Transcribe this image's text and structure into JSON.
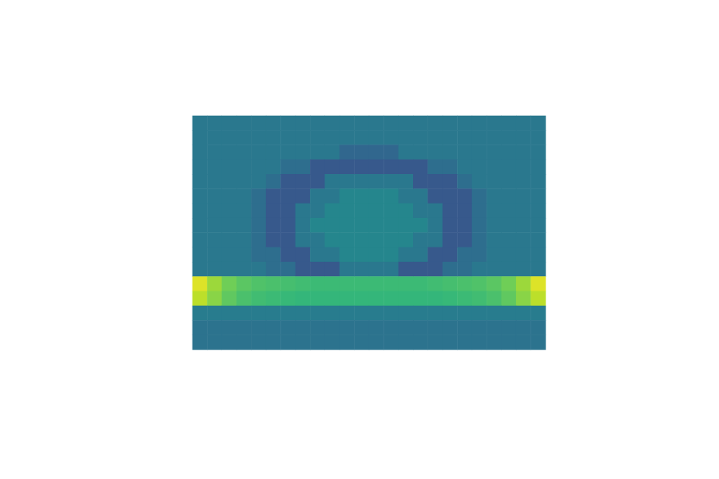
{
  "chart_data": {
    "type": "heatmap",
    "x": [
      null,
      null,
      null,
      null,
      null,
      null,
      null,
      null,
      null,
      null,
      null,
      null,
      null,
      null,
      null,
      null,
      null,
      null,
      null,
      null,
      null,
      null,
      null,
      null
    ],
    "y": [
      null,
      null,
      null,
      null,
      null,
      null,
      null,
      null,
      null,
      null,
      null,
      null,
      null,
      null,
      null,
      null
    ],
    "cells": [
      [
        0.4,
        0.4,
        0.4,
        0.4,
        0.4,
        0.4,
        0.4,
        0.4,
        0.4,
        0.4,
        0.4,
        0.4,
        0.4,
        0.4,
        0.4,
        0.4,
        0.4,
        0.4,
        0.4,
        0.4,
        0.4,
        0.4,
        0.4,
        0.4
      ],
      [
        0.4,
        0.4,
        0.4,
        0.4,
        0.4,
        0.4,
        0.4,
        0.4,
        0.4,
        0.4,
        0.4,
        0.4,
        0.4,
        0.4,
        0.4,
        0.4,
        0.4,
        0.4,
        0.4,
        0.4,
        0.4,
        0.4,
        0.4,
        0.4
      ],
      [
        0.4,
        0.4,
        0.4,
        0.4,
        0.4,
        0.4,
        0.4,
        0.4,
        0.4,
        0.4,
        0.33,
        0.33,
        0.33,
        0.33,
        0.4,
        0.4,
        0.4,
        0.4,
        0.4,
        0.4,
        0.4,
        0.4,
        0.4,
        0.4
      ],
      [
        0.4,
        0.4,
        0.4,
        0.4,
        0.4,
        0.4,
        0.36,
        0.36,
        0.28,
        0.28,
        0.28,
        0.28,
        0.28,
        0.28,
        0.28,
        0.28,
        0.36,
        0.36,
        0.4,
        0.4,
        0.4,
        0.4,
        0.4,
        0.4
      ],
      [
        0.4,
        0.4,
        0.4,
        0.4,
        0.4,
        0.36,
        0.28,
        0.28,
        0.28,
        0.4,
        0.4,
        0.4,
        0.4,
        0.4,
        0.4,
        0.28,
        0.28,
        0.28,
        0.36,
        0.4,
        0.4,
        0.4,
        0.4,
        0.4
      ],
      [
        0.4,
        0.4,
        0.4,
        0.4,
        0.36,
        0.28,
        0.28,
        0.28,
        0.4,
        0.4,
        0.46,
        0.46,
        0.46,
        0.46,
        0.4,
        0.4,
        0.28,
        0.28,
        0.28,
        0.36,
        0.4,
        0.4,
        0.4,
        0.4
      ],
      [
        0.4,
        0.4,
        0.4,
        0.4,
        0.36,
        0.28,
        0.28,
        0.4,
        0.4,
        0.46,
        0.46,
        0.46,
        0.46,
        0.46,
        0.46,
        0.4,
        0.4,
        0.28,
        0.28,
        0.36,
        0.4,
        0.4,
        0.4,
        0.4
      ],
      [
        0.4,
        0.4,
        0.4,
        0.4,
        0.36,
        0.28,
        0.28,
        0.4,
        0.46,
        0.46,
        0.46,
        0.46,
        0.46,
        0.46,
        0.46,
        0.46,
        0.4,
        0.28,
        0.28,
        0.36,
        0.4,
        0.4,
        0.4,
        0.4
      ],
      [
        0.4,
        0.4,
        0.4,
        0.4,
        0.36,
        0.28,
        0.28,
        0.4,
        0.4,
        0.46,
        0.46,
        0.46,
        0.46,
        0.46,
        0.46,
        0.4,
        0.4,
        0.28,
        0.28,
        0.36,
        0.4,
        0.4,
        0.4,
        0.4
      ],
      [
        0.4,
        0.4,
        0.4,
        0.4,
        0.36,
        0.36,
        0.28,
        0.28,
        0.4,
        0.4,
        0.46,
        0.46,
        0.46,
        0.46,
        0.4,
        0.4,
        0.28,
        0.28,
        0.36,
        0.36,
        0.4,
        0.4,
        0.4,
        0.4
      ],
      [
        0.4,
        0.4,
        0.4,
        0.4,
        0.4,
        0.36,
        0.36,
        0.28,
        0.28,
        0.28,
        0.4,
        0.4,
        0.4,
        0.4,
        0.28,
        0.28,
        0.28,
        0.36,
        0.36,
        0.4,
        0.4,
        0.4,
        0.4,
        0.4
      ],
      [
        0.95,
        0.85,
        0.78,
        0.74,
        0.72,
        0.71,
        0.7,
        0.69,
        0.68,
        0.68,
        0.68,
        0.68,
        0.68,
        0.68,
        0.68,
        0.68,
        0.69,
        0.7,
        0.71,
        0.72,
        0.74,
        0.78,
        0.85,
        0.95
      ],
      [
        0.9,
        0.82,
        0.75,
        0.71,
        0.69,
        0.68,
        0.67,
        0.66,
        0.66,
        0.66,
        0.66,
        0.66,
        0.66,
        0.66,
        0.66,
        0.66,
        0.66,
        0.67,
        0.68,
        0.69,
        0.71,
        0.75,
        0.82,
        0.9
      ],
      [
        0.42,
        0.42,
        0.42,
        0.42,
        0.42,
        0.42,
        0.42,
        0.42,
        0.42,
        0.42,
        0.42,
        0.42,
        0.42,
        0.42,
        0.42,
        0.42,
        0.42,
        0.42,
        0.42,
        0.42,
        0.42,
        0.42,
        0.42,
        0.42
      ],
      [
        0.38,
        0.38,
        0.38,
        0.38,
        0.38,
        0.38,
        0.38,
        0.38,
        0.38,
        0.38,
        0.38,
        0.38,
        0.38,
        0.38,
        0.38,
        0.38,
        0.38,
        0.38,
        0.38,
        0.38,
        0.38,
        0.38,
        0.38,
        0.38
      ],
      [
        0.38,
        0.38,
        0.38,
        0.38,
        0.38,
        0.38,
        0.38,
        0.38,
        0.38,
        0.38,
        0.38,
        0.38,
        0.38,
        0.38,
        0.38,
        0.38,
        0.38,
        0.38,
        0.38,
        0.38,
        0.38,
        0.38,
        0.38,
        0.38
      ]
    ],
    "color_range": [
      0,
      1
    ],
    "tick_labels": false,
    "grid": false
  }
}
